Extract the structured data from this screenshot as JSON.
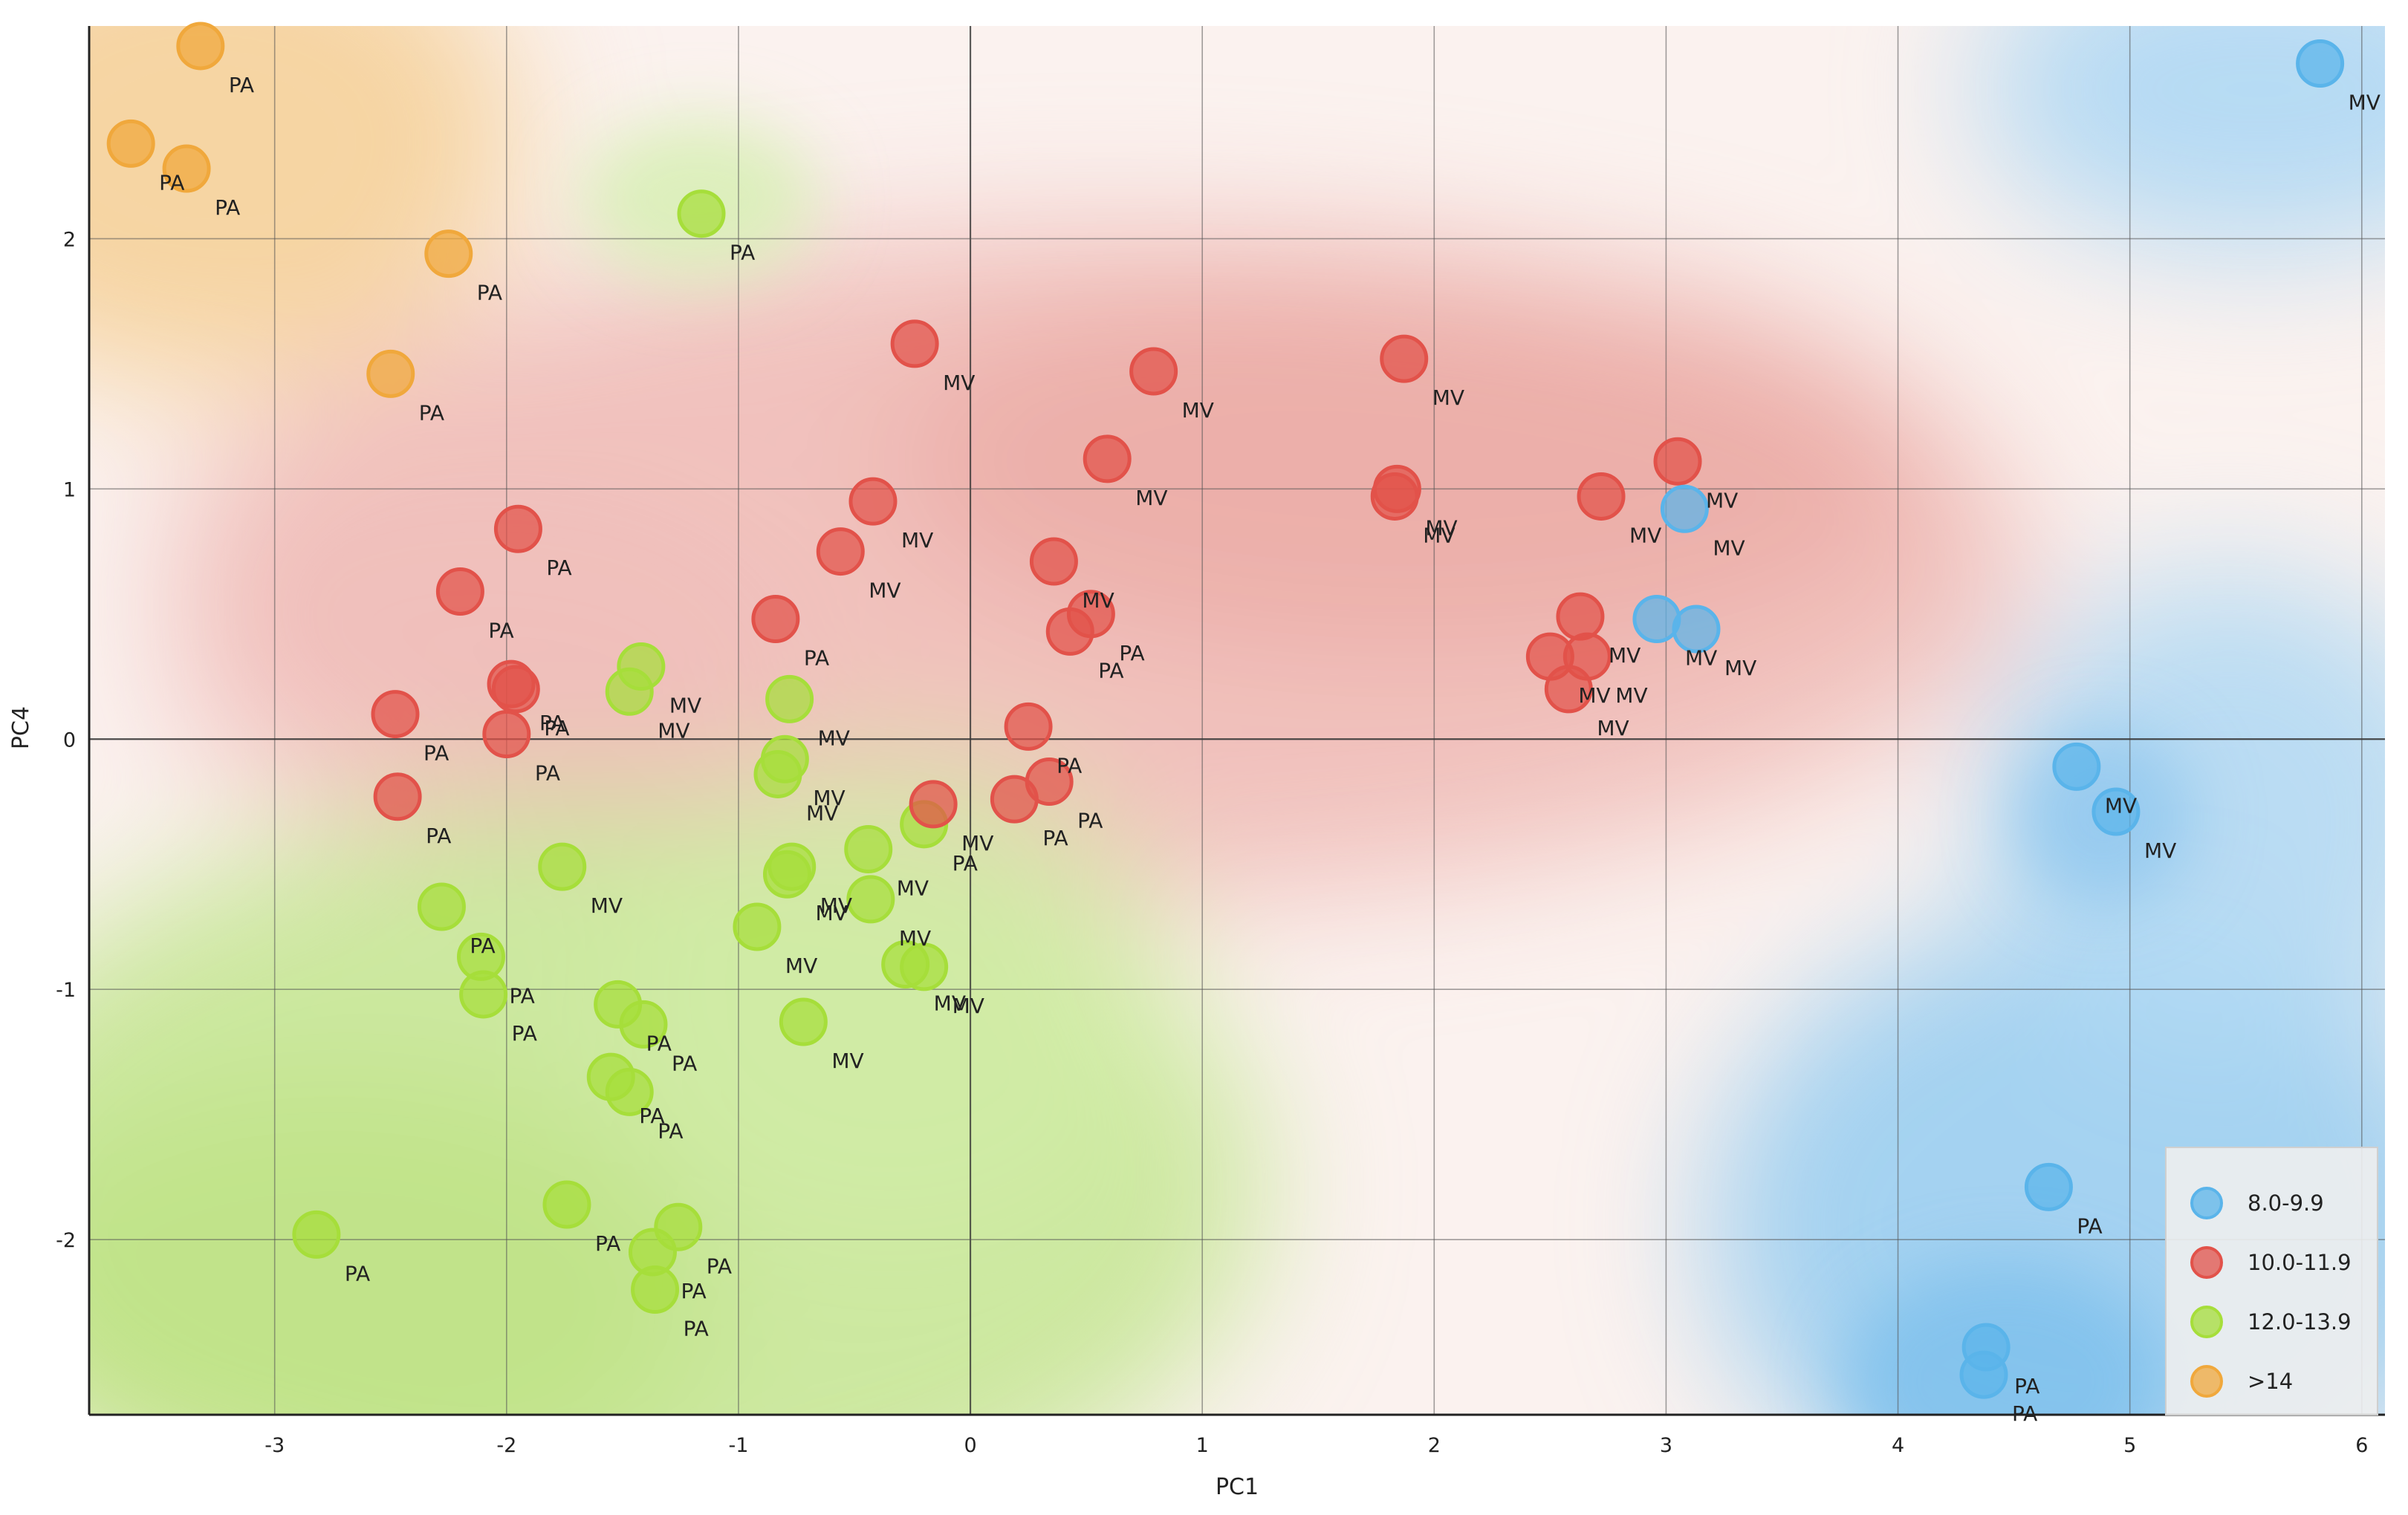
{
  "chart_data": {
    "type": "scatter",
    "title": "",
    "xlabel": "PC1",
    "ylabel": "PC4",
    "xlim": [
      -3.8,
      6.1
    ],
    "ylim": [
      -2.7,
      2.85
    ],
    "xticks": [
      -3,
      -2,
      -1,
      0,
      1,
      2,
      3,
      4,
      5,
      6
    ],
    "yticks": [
      -2,
      -1,
      0,
      1,
      2
    ],
    "grid": true,
    "legend_position": "bottom-right",
    "groups": [
      {
        "name": "8.0-9.9",
        "color": "#5ab4ea"
      },
      {
        "name": "10.0-11.9",
        "color": "#e2524a"
      },
      {
        "name": "12.0-13.9",
        "color": "#a6de3a"
      },
      {
        "name": ">14",
        "color": "#f0a83c"
      }
    ],
    "points": [
      {
        "x": -3.32,
        "y": 2.77,
        "label": "PA",
        "group": 3
      },
      {
        "x": -3.62,
        "y": 2.38,
        "label": "PA",
        "group": 3
      },
      {
        "x": -3.38,
        "y": 2.28,
        "label": "PA",
        "group": 3
      },
      {
        "x": -2.25,
        "y": 1.94,
        "label": "PA",
        "group": 3
      },
      {
        "x": -2.5,
        "y": 1.46,
        "label": "PA",
        "group": 3
      },
      {
        "x": -1.16,
        "y": 2.1,
        "label": "PA",
        "group": 2
      },
      {
        "x": -1.42,
        "y": 0.29,
        "label": "MV",
        "group": 2
      },
      {
        "x": -1.47,
        "y": 0.19,
        "label": "MV",
        "group": 2
      },
      {
        "x": -0.78,
        "y": 0.16,
        "label": "MV",
        "group": 2
      },
      {
        "x": -0.8,
        "y": -0.08,
        "label": "MV",
        "group": 2
      },
      {
        "x": -0.83,
        "y": -0.14,
        "label": "MV",
        "group": 2
      },
      {
        "x": -1.76,
        "y": -0.51,
        "label": "MV",
        "group": 2
      },
      {
        "x": -0.77,
        "y": -0.51,
        "label": "MV",
        "group": 2
      },
      {
        "x": -0.79,
        "y": -0.54,
        "label": "MV",
        "group": 2
      },
      {
        "x": -0.44,
        "y": -0.44,
        "label": "MV",
        "group": 2
      },
      {
        "x": -0.43,
        "y": -0.64,
        "label": "MV",
        "group": 2
      },
      {
        "x": -0.92,
        "y": -0.75,
        "label": "MV",
        "group": 2
      },
      {
        "x": -0.2,
        "y": -0.34,
        "label": "PA",
        "group": 2
      },
      {
        "x": -0.28,
        "y": -0.9,
        "label": "MV",
        "group": 2
      },
      {
        "x": -0.2,
        "y": -0.91,
        "label": "MV",
        "group": 2
      },
      {
        "x": -0.72,
        "y": -1.13,
        "label": "MV",
        "group": 2
      },
      {
        "x": -2.28,
        "y": -0.67,
        "label": "PA",
        "group": 2
      },
      {
        "x": -2.11,
        "y": -0.87,
        "label": "PA",
        "group": 2
      },
      {
        "x": -2.1,
        "y": -1.02,
        "label": "PA",
        "group": 2
      },
      {
        "x": -1.52,
        "y": -1.06,
        "label": "PA",
        "group": 2
      },
      {
        "x": -1.41,
        "y": -1.14,
        "label": "PA",
        "group": 2
      },
      {
        "x": -1.55,
        "y": -1.35,
        "label": "PA",
        "group": 2
      },
      {
        "x": -1.47,
        "y": -1.41,
        "label": "PA",
        "group": 2
      },
      {
        "x": -1.74,
        "y": -1.86,
        "label": "PA",
        "group": 2
      },
      {
        "x": -1.26,
        "y": -1.95,
        "label": "PA",
        "group": 2
      },
      {
        "x": -1.37,
        "y": -2.05,
        "label": "PA",
        "group": 2
      },
      {
        "x": -1.36,
        "y": -2.2,
        "label": "PA",
        "group": 2
      },
      {
        "x": -2.82,
        "y": -1.98,
        "label": "PA",
        "group": 2
      },
      {
        "x": -0.24,
        "y": 1.58,
        "label": "MV",
        "group": 1
      },
      {
        "x": 0.79,
        "y": 1.47,
        "label": "MV",
        "group": 1
      },
      {
        "x": 1.87,
        "y": 1.52,
        "label": "MV",
        "group": 1
      },
      {
        "x": 0.59,
        "y": 1.12,
        "label": "MV",
        "group": 1
      },
      {
        "x": 1.84,
        "y": 1.0,
        "label": "MV",
        "group": 1
      },
      {
        "x": 1.83,
        "y": 0.97,
        "label": "MV",
        "group": 1
      },
      {
        "x": -0.42,
        "y": 0.95,
        "label": "MV",
        "group": 1
      },
      {
        "x": -0.56,
        "y": 0.75,
        "label": "MV",
        "group": 1
      },
      {
        "x": 0.36,
        "y": 0.71,
        "label": "MV",
        "group": 1
      },
      {
        "x": 0.52,
        "y": 0.5,
        "label": "PA",
        "group": 1
      },
      {
        "x": 0.43,
        "y": 0.43,
        "label": "PA",
        "group": 1
      },
      {
        "x": -1.95,
        "y": 0.84,
        "label": "PA",
        "group": 1
      },
      {
        "x": -2.2,
        "y": 0.59,
        "label": "PA",
        "group": 1
      },
      {
        "x": -0.84,
        "y": 0.48,
        "label": "PA",
        "group": 1
      },
      {
        "x": -1.98,
        "y": 0.22,
        "label": "PA",
        "group": 1
      },
      {
        "x": -1.96,
        "y": 0.2,
        "label": "PA",
        "group": 1
      },
      {
        "x": -2.48,
        "y": 0.1,
        "label": "PA",
        "group": 1
      },
      {
        "x": -2.0,
        "y": 0.02,
        "label": "PA",
        "group": 1
      },
      {
        "x": -2.47,
        "y": -0.23,
        "label": "PA",
        "group": 1
      },
      {
        "x": 0.25,
        "y": 0.05,
        "label": "PA",
        "group": 1
      },
      {
        "x": 0.34,
        "y": -0.17,
        "label": "PA",
        "group": 1
      },
      {
        "x": 0.19,
        "y": -0.24,
        "label": "PA",
        "group": 1
      },
      {
        "x": -0.16,
        "y": -0.26,
        "label": "MV",
        "group": 1
      },
      {
        "x": 2.72,
        "y": 0.97,
        "label": "MV",
        "group": 1
      },
      {
        "x": 3.05,
        "y": 1.11,
        "label": "MV",
        "group": 1
      },
      {
        "x": 2.63,
        "y": 0.49,
        "label": "MV",
        "group": 1
      },
      {
        "x": 2.5,
        "y": 0.33,
        "label": "MV",
        "group": 1
      },
      {
        "x": 2.66,
        "y": 0.33,
        "label": "MV",
        "group": 1
      },
      {
        "x": 2.58,
        "y": 0.2,
        "label": "MV",
        "group": 1
      },
      {
        "x": 3.08,
        "y": 0.92,
        "label": "MV",
        "group": 0
      },
      {
        "x": 2.96,
        "y": 0.48,
        "label": "MV",
        "group": 0
      },
      {
        "x": 3.13,
        "y": 0.44,
        "label": "MV",
        "group": 0
      },
      {
        "x": 5.82,
        "y": 2.7,
        "label": "MV",
        "group": 0
      },
      {
        "x": 4.77,
        "y": -0.11,
        "label": "MV",
        "group": 0
      },
      {
        "x": 4.94,
        "y": -0.29,
        "label": "MV",
        "group": 0
      },
      {
        "x": 4.65,
        "y": -1.79,
        "label": "PA",
        "group": 0
      },
      {
        "x": 4.38,
        "y": -2.43,
        "label": "PA",
        "group": 0
      },
      {
        "x": 4.37,
        "y": -2.54,
        "label": "PA",
        "group": 0
      }
    ]
  }
}
